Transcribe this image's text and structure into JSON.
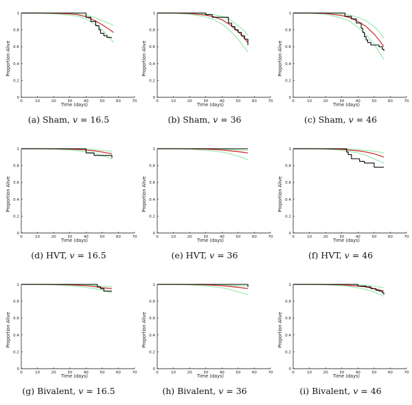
{
  "chart_data": [
    {
      "id": "a",
      "type": "line",
      "group": "Sham",
      "v": "16.5",
      "caption_label": "(a)",
      "xlabel": "Time (days)",
      "ylabel": "Proportion Alive",
      "xlim": [
        0,
        70
      ],
      "ylim": [
        0,
        1
      ],
      "xticks": [
        0,
        10,
        20,
        30,
        40,
        50,
        60,
        70
      ],
      "yticks": [
        0,
        0.2,
        0.4,
        0.6,
        0.8,
        1
      ],
      "series": [
        {
          "style": "kaplan-meier",
          "x": [
            0,
            39,
            40,
            43,
            46,
            48,
            49,
            51,
            53,
            56
          ],
          "y": [
            1,
            1,
            0.95,
            0.9,
            0.85,
            0.8,
            0.76,
            0.73,
            0.71,
            0.71
          ]
        },
        {
          "style": "model-fit",
          "x": [
            0,
            10,
            20,
            30,
            35,
            40,
            45,
            50,
            54,
            57
          ],
          "y": [
            1,
            1,
            0.998,
            0.99,
            0.98,
            0.955,
            0.915,
            0.86,
            0.81,
            0.77
          ]
        },
        {
          "style": "band-upper",
          "x": [
            0,
            10,
            20,
            30,
            35,
            40,
            45,
            50,
            54,
            57
          ],
          "y": [
            1,
            1,
            1,
            0.997,
            0.99,
            0.975,
            0.95,
            0.91,
            0.88,
            0.85
          ]
        },
        {
          "style": "band-lower",
          "x": [
            0,
            10,
            20,
            30,
            35,
            40,
            45,
            50,
            54,
            57
          ],
          "y": [
            1,
            0.998,
            0.99,
            0.975,
            0.96,
            0.93,
            0.87,
            0.8,
            0.72,
            0.65
          ]
        }
      ]
    },
    {
      "id": "b",
      "type": "line",
      "group": "Sham",
      "v": "36",
      "caption_label": "(b)",
      "xlabel": "Time (days)",
      "ylabel": "Proportion Alive",
      "xlim": [
        0,
        70
      ],
      "ylim": [
        0,
        1
      ],
      "xticks": [
        0,
        10,
        20,
        30,
        40,
        50,
        60,
        70
      ],
      "yticks": [
        0,
        0.2,
        0.4,
        0.6,
        0.8,
        1
      ],
      "series": [
        {
          "style": "kaplan-meier",
          "x": [
            0,
            24,
            30,
            34,
            42,
            44,
            46,
            48,
            50,
            52,
            54,
            56
          ],
          "y": [
            1,
            1,
            0.98,
            0.95,
            0.95,
            0.88,
            0.84,
            0.8,
            0.77,
            0.73,
            0.69,
            0.62
          ]
        },
        {
          "style": "model-fit",
          "x": [
            0,
            10,
            20,
            30,
            35,
            40,
            45,
            50,
            53,
            56
          ],
          "y": [
            1,
            1,
            0.995,
            0.975,
            0.955,
            0.92,
            0.86,
            0.78,
            0.72,
            0.65
          ]
        },
        {
          "style": "band-upper",
          "x": [
            0,
            10,
            20,
            30,
            35,
            40,
            45,
            50,
            53,
            56
          ],
          "y": [
            1,
            1,
            1,
            0.99,
            0.98,
            0.96,
            0.92,
            0.85,
            0.8,
            0.74
          ]
        },
        {
          "style": "band-lower",
          "x": [
            0,
            10,
            20,
            30,
            35,
            40,
            45,
            50,
            53,
            56
          ],
          "y": [
            1,
            0.998,
            0.985,
            0.955,
            0.92,
            0.87,
            0.79,
            0.69,
            0.61,
            0.54
          ]
        }
      ]
    },
    {
      "id": "c",
      "type": "line",
      "group": "Sham",
      "v": "46",
      "caption_label": "(c)",
      "xlabel": "Time (days)",
      "ylabel": "Proportion Alive",
      "xlim": [
        0,
        70
      ],
      "ylim": [
        0,
        1
      ],
      "xticks": [
        0,
        10,
        20,
        30,
        40,
        50,
        60,
        70
      ],
      "yticks": [
        0,
        0.2,
        0.4,
        0.6,
        0.8,
        1
      ],
      "series": [
        {
          "style": "kaplan-meier",
          "x": [
            0,
            28,
            32,
            36,
            39,
            42,
            43,
            44,
            45,
            46,
            48,
            52,
            53,
            55,
            56
          ],
          "y": [
            1,
            1,
            0.96,
            0.93,
            0.88,
            0.82,
            0.77,
            0.72,
            0.68,
            0.65,
            0.62,
            0.62,
            0.6,
            0.57,
            0.55
          ]
        },
        {
          "style": "model-fit",
          "x": [
            0,
            10,
            20,
            30,
            35,
            40,
            45,
            50,
            53,
            56
          ],
          "y": [
            1,
            1,
            0.995,
            0.97,
            0.945,
            0.9,
            0.84,
            0.75,
            0.68,
            0.6
          ]
        },
        {
          "style": "band-upper",
          "x": [
            0,
            10,
            20,
            30,
            35,
            40,
            45,
            50,
            53,
            56
          ],
          "y": [
            1,
            1,
            1,
            0.99,
            0.975,
            0.95,
            0.91,
            0.84,
            0.78,
            0.7
          ]
        },
        {
          "style": "band-lower",
          "x": [
            0,
            10,
            20,
            30,
            35,
            40,
            45,
            50,
            53,
            56
          ],
          "y": [
            1,
            0.998,
            0.985,
            0.94,
            0.9,
            0.83,
            0.74,
            0.63,
            0.54,
            0.45
          ]
        }
      ]
    },
    {
      "id": "d",
      "type": "line",
      "group": "HVT",
      "v": "16.5",
      "caption_label": "(d)",
      "xlabel": "Time (days)",
      "ylabel": "Proportion Alive",
      "xlim": [
        0,
        70
      ],
      "ylim": [
        0,
        1
      ],
      "xticks": [
        0,
        10,
        20,
        30,
        40,
        50,
        60,
        70
      ],
      "yticks": [
        0,
        0.2,
        0.4,
        0.6,
        0.8,
        1
      ],
      "series": [
        {
          "style": "kaplan-meier",
          "x": [
            0,
            39,
            40,
            45,
            55,
            56
          ],
          "y": [
            1,
            1,
            0.95,
            0.92,
            0.92,
            0.89
          ]
        },
        {
          "style": "model-fit",
          "x": [
            0,
            10,
            20,
            30,
            40,
            45,
            50,
            56
          ],
          "y": [
            1,
            1,
            0.999,
            0.995,
            0.985,
            0.975,
            0.96,
            0.94
          ]
        },
        {
          "style": "band-upper",
          "x": [
            0,
            10,
            20,
            30,
            40,
            45,
            50,
            56
          ],
          "y": [
            1,
            1,
            1,
            1,
            0.995,
            0.99,
            0.98,
            0.97
          ]
        },
        {
          "style": "band-lower",
          "x": [
            0,
            10,
            20,
            30,
            40,
            45,
            50,
            56
          ],
          "y": [
            1,
            0.999,
            0.995,
            0.985,
            0.965,
            0.95,
            0.92,
            0.88
          ]
        }
      ]
    },
    {
      "id": "e",
      "type": "line",
      "group": "HVT",
      "v": "36",
      "caption_label": "(e)",
      "xlabel": "Time (days)",
      "ylabel": "Proportion Alive",
      "xlim": [
        0,
        70
      ],
      "ylim": [
        0,
        1
      ],
      "xticks": [
        0,
        10,
        20,
        30,
        40,
        50,
        60,
        70
      ],
      "yticks": [
        0,
        0.2,
        0.4,
        0.6,
        0.8,
        1
      ],
      "series": [
        {
          "style": "kaplan-meier",
          "x": [
            0,
            56
          ],
          "y": [
            1,
            1
          ]
        },
        {
          "style": "model-fit",
          "x": [
            0,
            10,
            20,
            30,
            40,
            45,
            50,
            56
          ],
          "y": [
            1,
            1,
            0.999,
            0.995,
            0.985,
            0.975,
            0.965,
            0.95
          ]
        },
        {
          "style": "band-upper",
          "x": [
            0,
            10,
            20,
            30,
            40,
            45,
            50,
            56
          ],
          "y": [
            1,
            1,
            1,
            1,
            0.995,
            0.99,
            0.985,
            0.98
          ]
        },
        {
          "style": "band-lower",
          "x": [
            0,
            10,
            20,
            30,
            40,
            45,
            50,
            56
          ],
          "y": [
            1,
            0.999,
            0.995,
            0.98,
            0.96,
            0.94,
            0.91,
            0.87
          ]
        }
      ]
    },
    {
      "id": "f",
      "type": "line",
      "group": "HVT",
      "v": "46",
      "caption_label": "(f)",
      "xlabel": "Time (days)",
      "ylabel": "Proportion Alive",
      "xlim": [
        0,
        70
      ],
      "ylim": [
        0,
        1
      ],
      "xticks": [
        0,
        10,
        20,
        30,
        40,
        50,
        60,
        70
      ],
      "yticks": [
        0,
        0.2,
        0.4,
        0.6,
        0.8,
        1
      ],
      "series": [
        {
          "style": "kaplan-meier",
          "x": [
            0,
            22,
            33,
            34,
            36,
            41,
            44,
            48,
            50,
            56
          ],
          "y": [
            1,
            1,
            0.96,
            0.93,
            0.88,
            0.85,
            0.83,
            0.83,
            0.78,
            0.78
          ]
        },
        {
          "style": "model-fit",
          "x": [
            0,
            10,
            20,
            30,
            40,
            45,
            50,
            56
          ],
          "y": [
            1,
            1,
            0.999,
            0.993,
            0.975,
            0.96,
            0.94,
            0.9
          ]
        },
        {
          "style": "band-upper",
          "x": [
            0,
            10,
            20,
            30,
            40,
            45,
            50,
            56
          ],
          "y": [
            1,
            1,
            1,
            1,
            0.99,
            0.98,
            0.97,
            0.95
          ]
        },
        {
          "style": "band-lower",
          "x": [
            0,
            10,
            20,
            30,
            40,
            45,
            50,
            56
          ],
          "y": [
            1,
            0.999,
            0.995,
            0.98,
            0.95,
            0.92,
            0.88,
            0.83
          ]
        }
      ]
    },
    {
      "id": "g",
      "type": "line",
      "group": "Bivalent",
      "v": "16.5",
      "caption_label": "(g)",
      "xlabel": "Time (days)",
      "ylabel": "Proportion Alive",
      "xlim": [
        0,
        70
      ],
      "ylim": [
        0,
        1
      ],
      "xticks": [
        0,
        10,
        20,
        30,
        40,
        50,
        60,
        70
      ],
      "yticks": [
        0,
        0.2,
        0.4,
        0.6,
        0.8,
        1
      ],
      "series": [
        {
          "style": "kaplan-meier",
          "x": [
            0,
            46,
            47,
            49,
            51,
            56
          ],
          "y": [
            1,
            1,
            0.97,
            0.95,
            0.92,
            0.92
          ]
        },
        {
          "style": "model-fit",
          "x": [
            0,
            10,
            20,
            30,
            40,
            45,
            50,
            56
          ],
          "y": [
            1,
            1,
            0.999,
            0.995,
            0.985,
            0.975,
            0.96,
            0.95
          ]
        },
        {
          "style": "band-upper",
          "x": [
            0,
            10,
            20,
            30,
            40,
            45,
            50,
            56
          ],
          "y": [
            1,
            1,
            1,
            1,
            0.995,
            0.99,
            0.98,
            0.97
          ]
        },
        {
          "style": "band-lower",
          "x": [
            0,
            10,
            20,
            30,
            40,
            45,
            50,
            56
          ],
          "y": [
            1,
            0.999,
            0.995,
            0.985,
            0.965,
            0.95,
            0.93,
            0.9
          ]
        }
      ]
    },
    {
      "id": "h",
      "type": "line",
      "group": "Bivalent",
      "v": "36",
      "caption_label": "(h)",
      "xlabel": "Time (days)",
      "ylabel": "Proportion Alive",
      "xlim": [
        0,
        70
      ],
      "ylim": [
        0,
        1
      ],
      "xticks": [
        0,
        10,
        20,
        30,
        40,
        50,
        60,
        70
      ],
      "yticks": [
        0,
        0.2,
        0.4,
        0.6,
        0.8,
        1
      ],
      "series": [
        {
          "style": "kaplan-meier",
          "x": [
            0,
            54,
            56
          ],
          "y": [
            1,
            1,
            0.97
          ]
        },
        {
          "style": "model-fit",
          "x": [
            0,
            10,
            20,
            30,
            40,
            45,
            50,
            56
          ],
          "y": [
            1,
            1,
            0.999,
            0.995,
            0.985,
            0.975,
            0.965,
            0.95
          ]
        },
        {
          "style": "band-upper",
          "x": [
            0,
            10,
            20,
            30,
            40,
            45,
            50,
            56
          ],
          "y": [
            1,
            1,
            1,
            1,
            0.995,
            0.99,
            0.985,
            0.98
          ]
        },
        {
          "style": "band-lower",
          "x": [
            0,
            10,
            20,
            30,
            40,
            45,
            50,
            56
          ],
          "y": [
            1,
            0.999,
            0.995,
            0.98,
            0.96,
            0.94,
            0.91,
            0.88
          ]
        }
      ]
    },
    {
      "id": "i",
      "type": "line",
      "group": "Bivalent",
      "v": "46",
      "caption_label": "(i)",
      "xlabel": "Time (days)",
      "ylabel": "Proportion Alive",
      "xlim": [
        0,
        70
      ],
      "ylim": [
        0,
        1
      ],
      "xticks": [
        0,
        10,
        20,
        30,
        40,
        50,
        60,
        70
      ],
      "yticks": [
        0,
        0.2,
        0.4,
        0.6,
        0.8,
        1
      ],
      "series": [
        {
          "style": "kaplan-meier",
          "x": [
            0,
            37,
            40,
            45,
            48,
            51,
            53,
            55,
            56
          ],
          "y": [
            1,
            1,
            0.98,
            0.97,
            0.95,
            0.93,
            0.92,
            0.9,
            0.88
          ]
        },
        {
          "style": "model-fit",
          "x": [
            0,
            10,
            20,
            30,
            40,
            45,
            50,
            56
          ],
          "y": [
            1,
            1,
            0.999,
            0.995,
            0.98,
            0.97,
            0.95,
            0.92
          ]
        },
        {
          "style": "band-upper",
          "x": [
            0,
            10,
            20,
            30,
            40,
            45,
            50,
            56
          ],
          "y": [
            1,
            1,
            1,
            1,
            0.995,
            0.99,
            0.98,
            0.96
          ]
        },
        {
          "style": "band-lower",
          "x": [
            0,
            10,
            20,
            30,
            40,
            45,
            50,
            56
          ],
          "y": [
            1,
            0.999,
            0.995,
            0.985,
            0.96,
            0.94,
            0.91,
            0.86
          ]
        }
      ]
    }
  ],
  "colors": {
    "kaplan-meier": "#000000",
    "model-fit": "#cc3333",
    "band": "#9be8b0"
  }
}
